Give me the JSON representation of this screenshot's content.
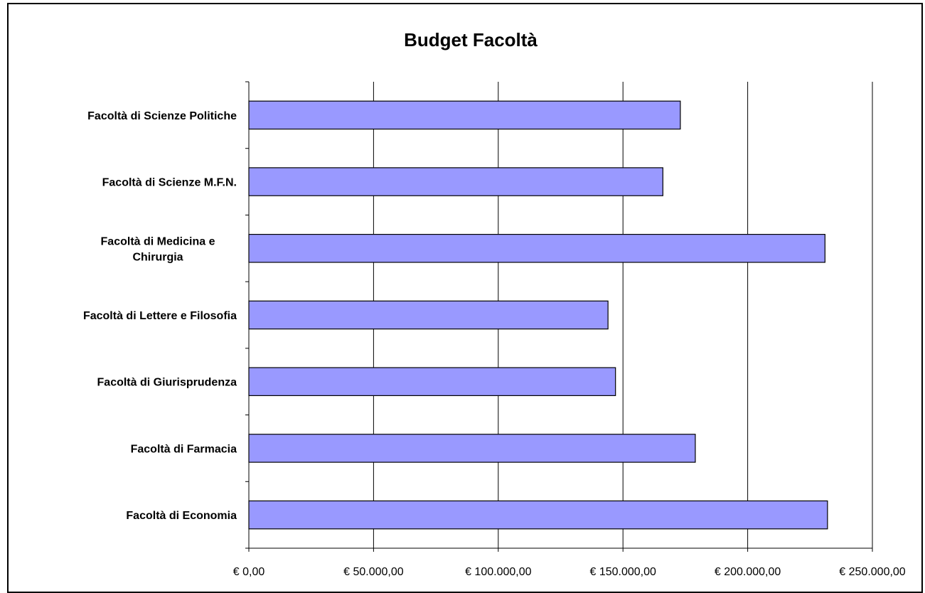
{
  "chart_data": {
    "type": "bar",
    "orientation": "horizontal",
    "title": "Budget Facoltà",
    "xlabel": "",
    "ylabel": "",
    "categories": [
      [
        "Facoltà di Scienze Politiche"
      ],
      [
        "Facoltà di Scienze M.F.N."
      ],
      [
        "Facoltà di Medicina e",
        "Chirurgia"
      ],
      [
        "Facoltà di Lettere e Filosofia"
      ],
      [
        "Facoltà di Giurisprudenza"
      ],
      [
        "Facoltà di Farmacia"
      ],
      [
        "Facoltà di Economia"
      ]
    ],
    "values": [
      173000,
      166000,
      231000,
      144000,
      147000,
      179000,
      232000
    ],
    "xlim": [
      0,
      250000
    ],
    "ticks": [
      0,
      50000,
      100000,
      150000,
      200000,
      250000
    ],
    "tick_labels": [
      "€ 0,00",
      "€ 50.000,00",
      "€ 100.000,00",
      "€ 150.000,00",
      "€ 200.000,00",
      "€ 250.000,00"
    ],
    "grid": "vertical",
    "legend": "none",
    "bar_color": "#9999FF",
    "bar_edge_color": "#000000"
  }
}
